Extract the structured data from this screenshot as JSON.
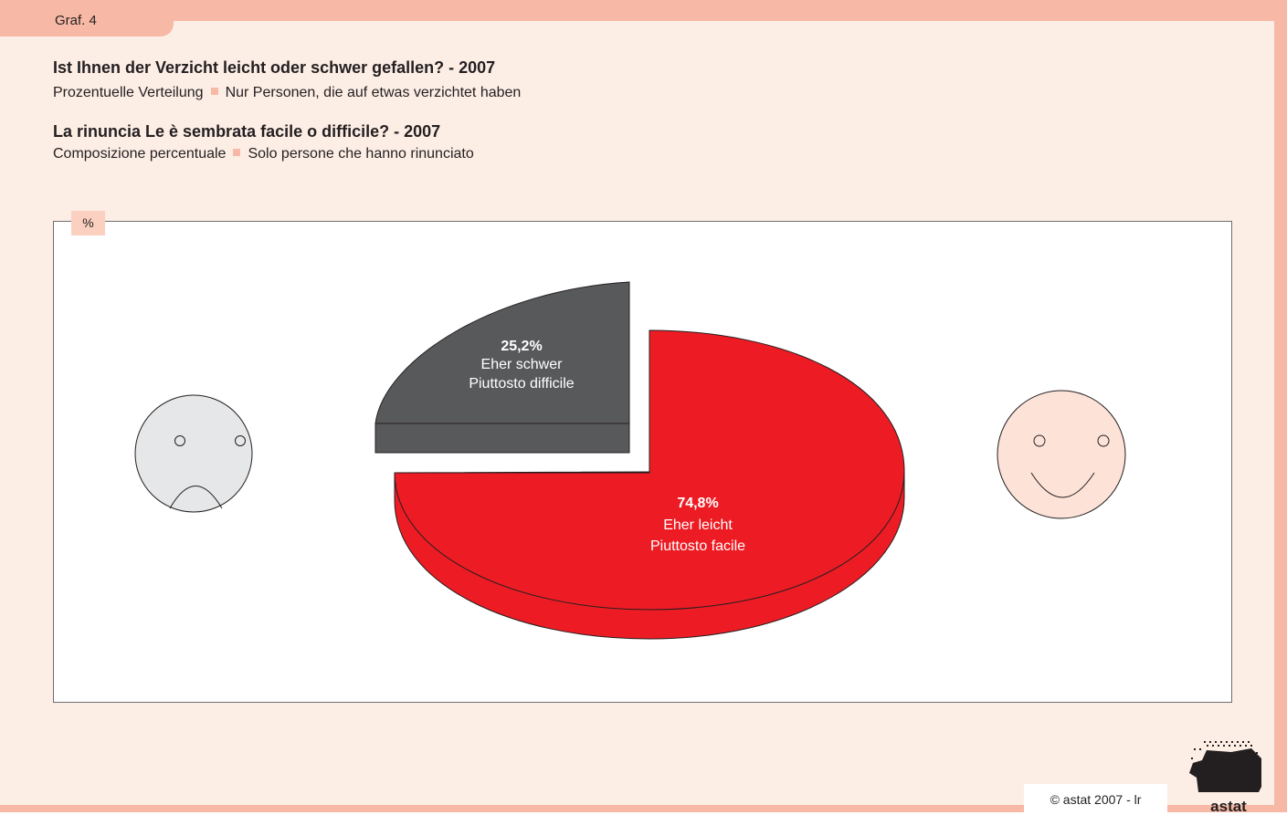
{
  "figure_label": "Graf. 4",
  "titles": [
    {
      "heading": "Ist Ihnen der Verzicht leicht oder schwer gefallen? - 2007",
      "sub_a": "Prozentuelle Verteilung",
      "sub_b": "Nur Personen, die auf etwas verzichtet haben"
    },
    {
      "heading": "La rinuncia Le è sembrata facile o difficile? - 2007",
      "sub_a": "Composizione percentuale",
      "sub_b": "Solo persone che hanno rinunciato"
    }
  ],
  "unit_label": "%",
  "copyright": "© astat 2007 - lr",
  "logo_text": "astat",
  "colors": {
    "frame": "#f7b9a5",
    "background": "#fdeee5",
    "difficult": "#58595b",
    "easy": "#ed1c24"
  },
  "icons": {
    "left": "sad-face-icon",
    "right": "happy-face-icon"
  },
  "chart_data": {
    "type": "pie",
    "style": "3d-exploded",
    "slices": [
      {
        "value": 74.8,
        "value_label": "74,8%",
        "label_de": "Eher leicht",
        "label_it": "Piuttosto facile",
        "color": "#ed1c24"
      },
      {
        "value": 25.2,
        "value_label": "25,2%",
        "label_de": "Eher schwer",
        "label_it": "Piuttosto difficile",
        "color": "#58595b"
      }
    ]
  }
}
